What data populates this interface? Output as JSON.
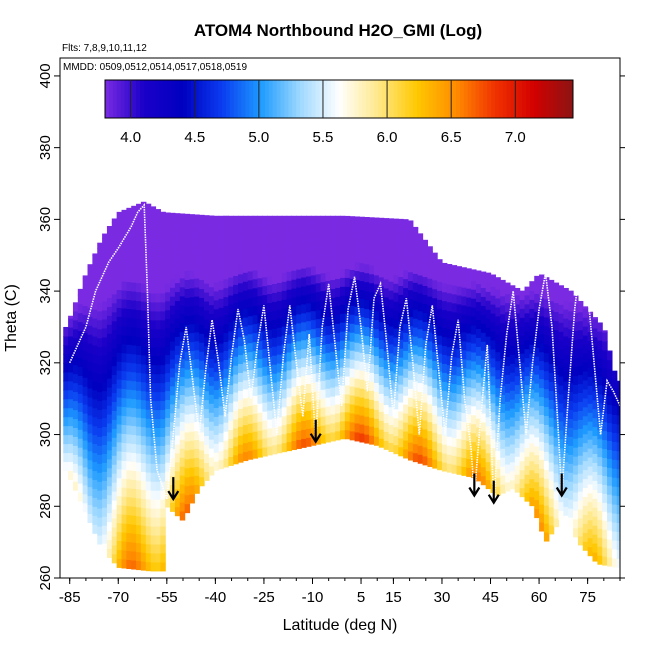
{
  "chart_data": {
    "type": "heatmap",
    "title": "ATOM4 Northbound H2O_GMI (Log)",
    "annotation_flights": "Flts: 7,8,9,10,11,12",
    "annotation_dates": "MMDD: 0509,0512,0514,0517,0518,0519",
    "xlabel": "Latitude (deg N)",
    "ylabel": "Theta (C)",
    "xlim": [
      -88,
      85
    ],
    "ylim": [
      260,
      405
    ],
    "x_ticks": [
      -85,
      -70,
      -55,
      -40,
      -25,
      -10,
      5,
      15,
      30,
      45,
      60,
      75
    ],
    "x_tick_labels": [
      "-85",
      "-70",
      "-55",
      "-40",
      "-25",
      "-10",
      "5",
      "15",
      "30",
      "45",
      "60",
      "75"
    ],
    "y_ticks": [
      260,
      280,
      300,
      320,
      340,
      360,
      380,
      400
    ],
    "y_tick_labels": [
      "260",
      "280",
      "300",
      "320",
      "340",
      "360",
      "380",
      "400"
    ],
    "colorbar": {
      "range": [
        3.8,
        7.45
      ],
      "ticks": [
        4.0,
        4.5,
        5.0,
        5.5,
        6.0,
        6.5,
        7.0
      ],
      "tick_labels": [
        "4.0",
        "4.5",
        "5.0",
        "5.5",
        "6.0",
        "6.5",
        "7.0"
      ],
      "colors": [
        "#7a2be2",
        "#1a00c8",
        "#0000c0",
        "#0a3cf0",
        "#1e9bff",
        "#9ed8ff",
        "#ffffff",
        "#ffe88a",
        "#ffc800",
        "#ff8c00",
        "#f03200",
        "#d20000",
        "#8c1414"
      ]
    },
    "grid": false,
    "field_description_points": {
      "surface_theta": [
        [
          -86,
          290
        ],
        [
          -80,
          278
        ],
        [
          -75,
          268
        ],
        [
          -70,
          263
        ],
        [
          -60,
          262
        ],
        [
          -56,
          262
        ],
        [
          -55,
          280
        ],
        [
          -50,
          276
        ],
        [
          -45,
          285
        ],
        [
          -40,
          290
        ],
        [
          -30,
          293
        ],
        [
          -20,
          295
        ],
        [
          -10,
          297
        ],
        [
          0,
          299
        ],
        [
          10,
          297
        ],
        [
          20,
          293
        ],
        [
          30,
          290
        ],
        [
          40,
          288
        ],
        [
          47,
          283
        ],
        [
          52,
          285
        ],
        [
          58,
          280
        ],
        [
          62,
          270
        ],
        [
          68,
          278
        ],
        [
          72,
          270
        ],
        [
          78,
          264
        ],
        [
          84,
          263
        ]
      ],
      "top_theta": [
        [
          -86,
          330
        ],
        [
          -80,
          345
        ],
        [
          -75,
          355
        ],
        [
          -70,
          362
        ],
        [
          -62,
          365
        ],
        [
          -56,
          362
        ],
        [
          -40,
          361
        ],
        [
          -20,
          361
        ],
        [
          0,
          361
        ],
        [
          20,
          360
        ],
        [
          30,
          348
        ],
        [
          45,
          345
        ],
        [
          55,
          340
        ],
        [
          60,
          345
        ],
        [
          70,
          340
        ],
        [
          80,
          330
        ],
        [
          84,
          315
        ]
      ]
    },
    "arrows": [
      {
        "lat": -53,
        "theta": 282
      },
      {
        "lat": -9,
        "theta": 298
      },
      {
        "lat": 40,
        "theta": 283
      },
      {
        "lat": 46,
        "theta": 281
      },
      {
        "lat": 67,
        "theta": 283
      }
    ],
    "flight_tracks": [
      {
        "points": [
          [
            -85,
            320
          ],
          [
            -80,
            330
          ],
          [
            -77,
            340
          ],
          [
            -73,
            348
          ],
          [
            -70,
            352
          ],
          [
            -66,
            358
          ],
          [
            -64,
            362
          ],
          [
            -62,
            364
          ],
          [
            -61,
            340
          ],
          [
            -60,
            310
          ],
          [
            -58,
            290
          ],
          [
            -55,
            282
          ]
        ]
      },
      {
        "points": [
          [
            -55,
            282
          ],
          [
            -53,
            300
          ],
          [
            -51,
            320
          ],
          [
            -49,
            330
          ],
          [
            -47,
            315
          ],
          [
            -45,
            300
          ],
          [
            -43,
            318
          ],
          [
            -41,
            332
          ],
          [
            -39,
            320
          ],
          [
            -37,
            305
          ],
          [
            -35,
            322
          ],
          [
            -33,
            335
          ],
          [
            -31,
            326
          ],
          [
            -29,
            310
          ],
          [
            -27,
            325
          ],
          [
            -25,
            336
          ],
          [
            -23,
            318
          ],
          [
            -21,
            300
          ],
          [
            -19,
            322
          ],
          [
            -17,
            336
          ],
          [
            -15,
            320
          ],
          [
            -13,
            305
          ],
          [
            -11,
            328
          ],
          [
            -9,
            298
          ]
        ]
      },
      {
        "points": [
          [
            -9,
            298
          ],
          [
            -7,
            330
          ],
          [
            -5,
            342
          ],
          [
            -3,
            325
          ],
          [
            -1,
            308
          ],
          [
            1,
            335
          ],
          [
            3,
            344
          ],
          [
            5,
            330
          ],
          [
            7,
            312
          ],
          [
            9,
            338
          ],
          [
            11,
            342
          ],
          [
            13,
            325
          ],
          [
            15,
            305
          ],
          [
            17,
            330
          ],
          [
            19,
            338
          ],
          [
            21,
            320
          ],
          [
            23,
            300
          ],
          [
            25,
            325
          ],
          [
            27,
            336
          ],
          [
            29,
            318
          ],
          [
            31,
            300
          ],
          [
            33,
            322
          ],
          [
            35,
            332
          ],
          [
            37,
            310
          ],
          [
            39,
            296
          ],
          [
            40,
            283
          ]
        ]
      },
      {
        "points": [
          [
            40,
            283
          ],
          [
            42,
            305
          ],
          [
            44,
            325
          ],
          [
            46,
            281
          ],
          [
            48,
            310
          ],
          [
            50,
            328
          ],
          [
            52,
            340
          ],
          [
            54,
            320
          ],
          [
            56,
            300
          ],
          [
            58,
            320
          ],
          [
            60,
            335
          ],
          [
            62,
            345
          ],
          [
            64,
            330
          ],
          [
            66,
            300
          ],
          [
            67,
            283
          ]
        ]
      },
      {
        "points": [
          [
            67,
            283
          ],
          [
            69,
            310
          ],
          [
            71,
            335
          ],
          [
            73,
            350
          ],
          [
            75,
            340
          ],
          [
            77,
            320
          ],
          [
            79,
            300
          ],
          [
            81,
            315
          ],
          [
            83,
            312
          ],
          [
            85,
            308
          ]
        ]
      }
    ]
  }
}
